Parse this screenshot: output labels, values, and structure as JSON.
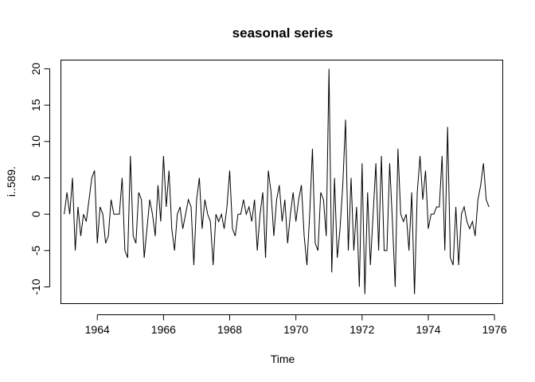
{
  "chart_data": {
    "type": "line",
    "title": "seasonal series",
    "xlabel": "Time",
    "ylabel": "i..589.",
    "xlim": [
      1962.9,
      1976.25
    ],
    "ylim": [
      -12.3,
      21.2
    ],
    "x_ticks": [
      1964,
      1966,
      1968,
      1970,
      1972,
      1974,
      1976
    ],
    "x_tick_labels": [
      "1964",
      "1966",
      "1968",
      "1970",
      "1972",
      "1974",
      "1976"
    ],
    "y_ticks": [
      -10,
      -5,
      0,
      5,
      10,
      15,
      20
    ],
    "y_tick_labels": [
      "-10",
      "-5",
      "0",
      "5",
      "10",
      "15",
      "20"
    ],
    "grid": false,
    "series": [
      {
        "start": 1963.0,
        "frequency": 12,
        "values": [
          0,
          3,
          0,
          5,
          -5,
          1,
          -3,
          0,
          -1,
          2,
          5,
          6,
          -4,
          1,
          0,
          -4,
          -3,
          2,
          0,
          0,
          0,
          5,
          -5,
          -6,
          8,
          -3,
          -4,
          3,
          2,
          -6,
          -2,
          2,
          0,
          -3,
          4,
          -1,
          8,
          1,
          6,
          -2,
          -5,
          0,
          1,
          -2,
          0,
          2,
          1,
          -7,
          2,
          5,
          -2,
          2,
          0,
          -1,
          -7,
          0,
          -1,
          0,
          -2,
          1,
          6,
          -2,
          -3,
          0,
          0,
          2,
          0,
          1,
          -1,
          2,
          -5,
          0,
          3,
          -6,
          6,
          3,
          -3,
          2,
          4,
          -1,
          2,
          -4,
          0,
          3,
          -1,
          2,
          4,
          -3,
          -7,
          0,
          9,
          -4,
          -5,
          3,
          2,
          -3,
          20,
          -8,
          5,
          -6,
          -2,
          4,
          13,
          -5,
          5,
          -5,
          1,
          -10,
          7,
          -11,
          3,
          -7,
          0,
          7,
          -5,
          8,
          -5,
          -5,
          7,
          -1,
          -10,
          9,
          0,
          -1,
          0,
          -5,
          3,
          -11,
          3,
          8,
          2,
          6,
          -2,
          0,
          0,
          1,
          1,
          8,
          -5,
          12,
          -6,
          -7,
          1,
          -7,
          0,
          1,
          -1,
          -2,
          -1,
          -3,
          2,
          4,
          7,
          2,
          1
        ]
      }
    ]
  }
}
